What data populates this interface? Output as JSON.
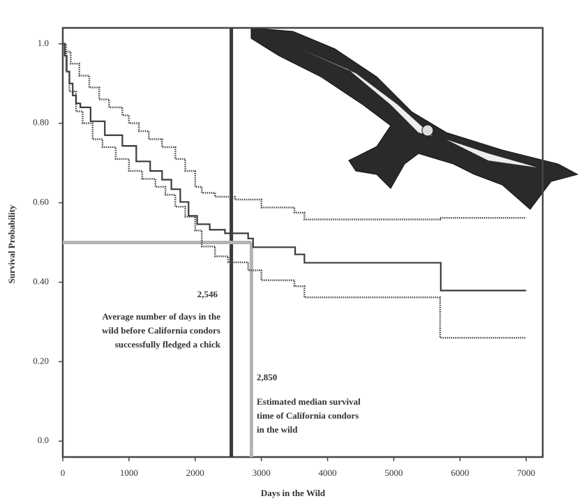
{
  "chart_data": {
    "type": "step",
    "xlabel": "Days in the Wild",
    "ylabel": "Survival Probability",
    "xlim": [
      0,
      7250
    ],
    "ylim": [
      -0.04,
      1.04
    ],
    "xticks": [
      0,
      1000,
      2000,
      3000,
      4000,
      5000,
      6000,
      7000
    ],
    "yticks": [
      {
        "value": 0,
        "label": "0.0"
      },
      {
        "value": 0.2,
        "label": "0.20"
      },
      {
        "value": 0.4,
        "label": "0.40"
      },
      {
        "value": 0.6,
        "label": "0.60"
      },
      {
        "value": 0.8,
        "label": "0.80"
      },
      {
        "value": 1,
        "label": "1.0"
      }
    ],
    "series": [
      {
        "color": "#3a3a3a",
        "line_style": "solid",
        "x": [
          0,
          30,
          60,
          100,
          150,
          200,
          265,
          420,
          635,
          900,
          1110,
          1320,
          1500,
          1640,
          1775,
          1900,
          2030,
          2220,
          2450,
          2800,
          2875,
          3510,
          3650,
          5710,
          7000
        ],
        "values": [
          1.0,
          0.97,
          0.93,
          0.9,
          0.87,
          0.85,
          0.84,
          0.805,
          0.77,
          0.743,
          0.704,
          0.68,
          0.658,
          0.634,
          0.602,
          0.567,
          0.546,
          0.532,
          0.523,
          0.51,
          0.488,
          0.47,
          0.449,
          0.379,
          0.379
        ]
      },
      {
        "color": "#444444",
        "line_style": "dotted",
        "x": [
          0,
          50,
          120,
          250,
          400,
          550,
          700,
          900,
          1000,
          1150,
          1300,
          1500,
          1700,
          1850,
          2000,
          2100,
          2300,
          2600,
          3000,
          3500,
          3650,
          5700,
          7000
        ],
        "values": [
          1.0,
          0.98,
          0.95,
          0.92,
          0.89,
          0.86,
          0.84,
          0.82,
          0.8,
          0.78,
          0.76,
          0.74,
          0.71,
          0.68,
          0.64,
          0.625,
          0.615,
          0.608,
          0.588,
          0.575,
          0.558,
          0.562,
          0.562
        ]
      },
      {
        "color": "#444444",
        "line_style": "dotted",
        "x": [
          0,
          50,
          100,
          200,
          300,
          450,
          600,
          800,
          1000,
          1200,
          1400,
          1550,
          1700,
          1850,
          2000,
          2100,
          2300,
          2500,
          2800,
          3000,
          3500,
          3650,
          5700,
          7000
        ],
        "values": [
          1.0,
          0.93,
          0.88,
          0.83,
          0.8,
          0.76,
          0.74,
          0.71,
          0.68,
          0.66,
          0.64,
          0.62,
          0.59,
          0.565,
          0.53,
          0.49,
          0.465,
          0.45,
          0.43,
          0.405,
          0.39,
          0.362,
          0.26,
          0.26
        ]
      }
    ],
    "reference_lines": [
      {
        "value": 2546,
        "label": "2,546",
        "color": "#3a3a3a",
        "lines": [
          "Average number of days in the",
          "wild before California condors",
          "successfully fledged a chick"
        ]
      },
      {
        "value": 2850,
        "label": "2,850",
        "color": "#b4b4b4",
        "lines": [
          "Estimated median survival",
          "time of California condors",
          "in the wild"
        ],
        "y": 0.5
      }
    ]
  }
}
